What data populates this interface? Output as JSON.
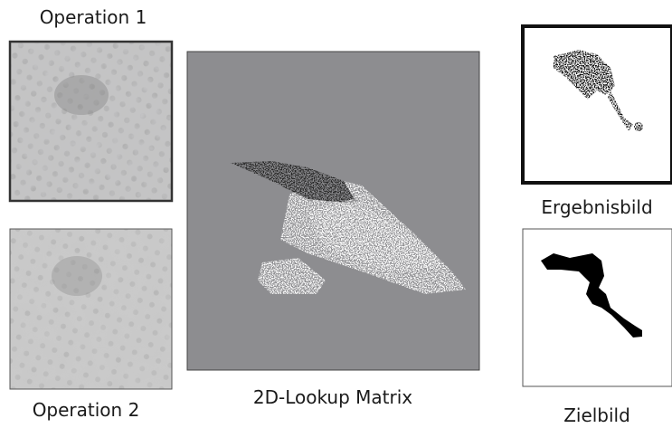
{
  "operation_1": {
    "label": "Operation 1"
  },
  "operation_2": {
    "label": "Operation 2"
  },
  "lookup_matrix": {
    "label": "2D-Lookup Matrix"
  },
  "result_image": {
    "label": "Ergebnisbild"
  },
  "target_image": {
    "label": "Zielbild"
  }
}
